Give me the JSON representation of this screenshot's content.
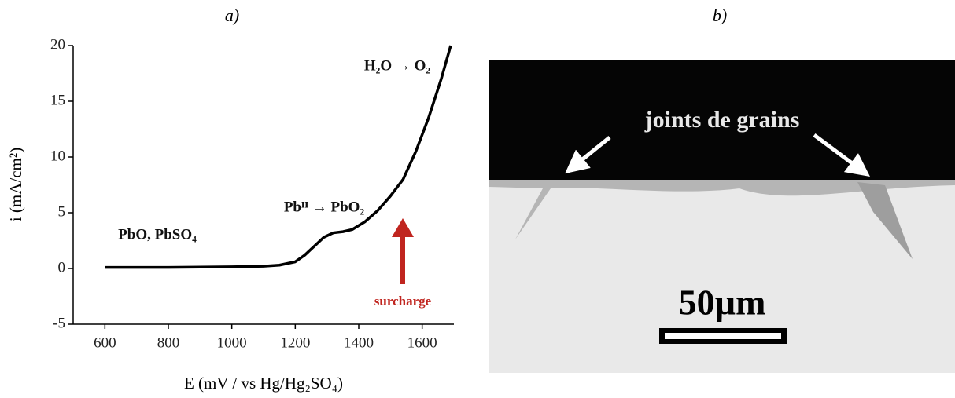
{
  "chart_data": {
    "type": "line",
    "title": "a)",
    "x_label": "E (mV / vs Hg/Hg₂SO₄)",
    "y_label": "i (mA/cm²)",
    "xlim": [
      500,
      1700
    ],
    "xticks": [
      600,
      800,
      1000,
      1200,
      1400,
      1600
    ],
    "ylim": [
      -5,
      20
    ],
    "yticks": [
      -5,
      0,
      5,
      10,
      15,
      20
    ],
    "series": [
      {
        "color": "#000000",
        "x": [
          600,
          800,
          1000,
          1100,
          1150,
          1200,
          1230,
          1260,
          1290,
          1320,
          1350,
          1380,
          1420,
          1460,
          1500,
          1540,
          1580,
          1620,
          1660,
          1690
        ],
        "values": [
          0.1,
          0.1,
          0.15,
          0.2,
          0.3,
          0.6,
          1.2,
          2.0,
          2.8,
          3.2,
          3.3,
          3.5,
          4.2,
          5.2,
          6.5,
          8.0,
          10.5,
          13.5,
          17,
          20
        ]
      }
    ],
    "annotations": [
      "PbO, PbSO₄",
      "Pbᴵᴵ → PbO₂",
      "H₂O → O₂",
      "surcharge"
    ]
  },
  "panel_b": {
    "label": "b)",
    "annotation": "joints de grains",
    "scale_label": "50µm"
  }
}
